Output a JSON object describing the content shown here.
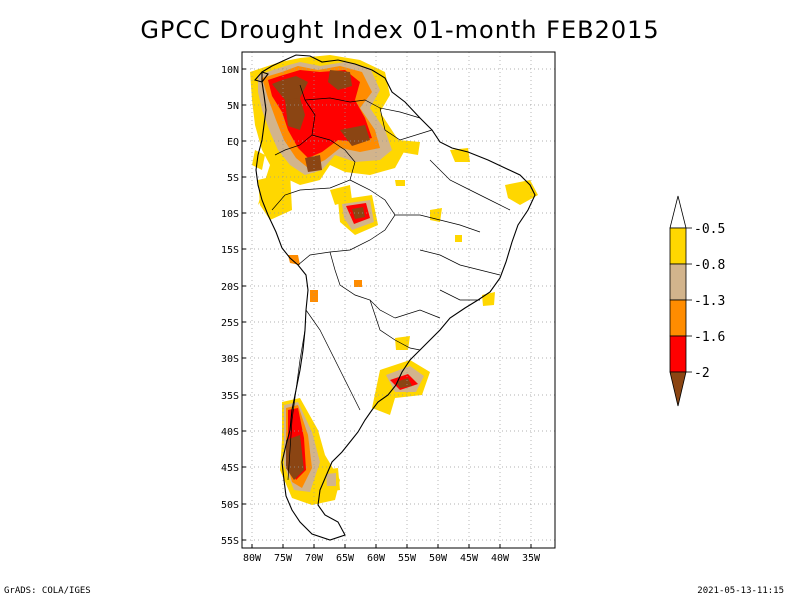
{
  "title": "GPCC Drought Index 01-month FEB2015",
  "footer": {
    "left": "GrADS: COLA/IGES",
    "right": "2021-05-13-11:15"
  },
  "lat_labels": [
    "10N",
    "5N",
    "EQ",
    "5S",
    "10S",
    "15S",
    "20S",
    "25S",
    "30S",
    "35S",
    "40S",
    "45S",
    "50S",
    "55S"
  ],
  "lon_labels": [
    "80W",
    "75W",
    "70W",
    "65W",
    "60W",
    "55W",
    "50W",
    "45W",
    "40W",
    "35W"
  ],
  "colorbar": {
    "labels": [
      "-0.5",
      "-0.8",
      "-1.3",
      "-1.6",
      "-2"
    ],
    "colors": [
      "#ffffff",
      "#ffd700",
      "#d2b48c",
      "#ff8c00",
      "#ff0000",
      "#8b4513"
    ]
  },
  "colors": {
    "yellow": "#ffd700",
    "tan": "#d2b48c",
    "orange": "#ff8c00",
    "red": "#ff0000",
    "brown": "#8b4513"
  }
}
